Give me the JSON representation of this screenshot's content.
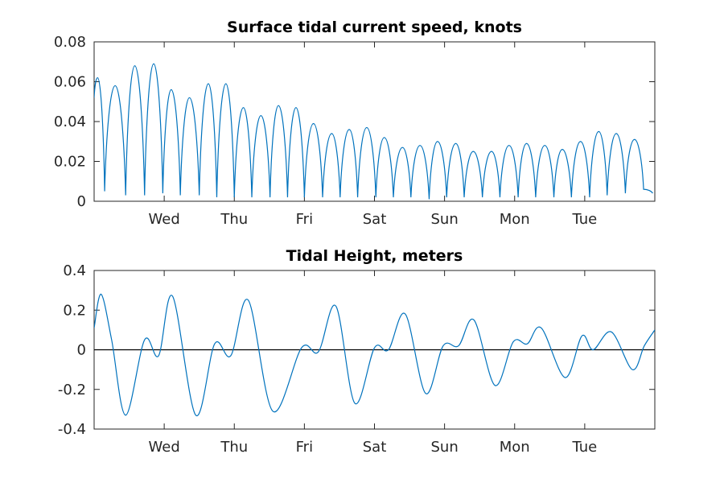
{
  "chart_data": [
    {
      "type": "line",
      "title": "Surface tidal current speed, knots",
      "xlabel": "",
      "ylabel": "",
      "x_unit": "days",
      "xlim": [
        0,
        8
      ],
      "ylim": [
        0,
        0.08
      ],
      "yticks": [
        0,
        0.02,
        0.04,
        0.06,
        0.08
      ],
      "ytick_labels": [
        "0",
        "0.02",
        "0.04",
        "0.06",
        "0.08"
      ],
      "xticks": [
        1,
        2,
        3,
        4,
        5,
        6,
        7
      ],
      "xtick_labels": [
        "Wed",
        "Thu",
        "Fri",
        "Sat",
        "Sun",
        "Mon",
        "Tue"
      ],
      "grid": false,
      "color": "#0072BD",
      "series": [
        {
          "x": [
            0,
            0.05,
            0.15,
            0.3,
            0.45,
            0.58,
            0.72,
            0.85,
            0.98,
            1.1,
            1.23,
            1.36,
            1.5,
            1.63,
            1.75,
            1.88,
            2.0,
            2.13,
            2.25,
            2.38,
            2.51,
            2.63,
            2.76,
            2.88,
            3.0,
            3.13,
            3.26,
            3.39,
            3.51,
            3.64,
            3.76,
            3.89,
            4.02,
            4.14,
            4.27,
            4.4,
            4.52,
            4.65,
            4.78,
            4.9,
            5.03,
            5.16,
            5.28,
            5.41,
            5.54,
            5.67,
            5.79,
            5.92,
            6.05,
            6.17,
            6.3,
            6.43,
            6.56,
            6.68,
            6.81,
            6.94,
            7.07,
            7.2,
            7.32,
            7.45,
            7.58,
            7.71,
            7.84,
            7.97
          ],
          "y": [
            0.052,
            0.062,
            0.005,
            0.058,
            0.003,
            0.068,
            0.003,
            0.069,
            0.004,
            0.056,
            0.003,
            0.052,
            0.003,
            0.059,
            0.002,
            0.059,
            0.002,
            0.047,
            0.002,
            0.043,
            0.002,
            0.048,
            0.002,
            0.047,
            0.002,
            0.039,
            0.002,
            0.034,
            0.002,
            0.036,
            0.002,
            0.037,
            0.002,
            0.032,
            0.002,
            0.027,
            0.002,
            0.028,
            0.001,
            0.03,
            0.002,
            0.029,
            0.002,
            0.025,
            0.002,
            0.025,
            0.002,
            0.028,
            0.002,
            0.029,
            0.002,
            0.028,
            0.002,
            0.026,
            0.002,
            0.03,
            0.002,
            0.035,
            0.003,
            0.034,
            0.004,
            0.031,
            0.006,
            0.004
          ]
        }
      ]
    },
    {
      "type": "line",
      "title": "Tidal Height, meters",
      "xlabel": "",
      "ylabel": "",
      "x_unit": "days",
      "xlim": [
        0,
        8
      ],
      "ylim": [
        -0.4,
        0.4
      ],
      "yticks": [
        -0.4,
        -0.2,
        0,
        0.2,
        0.4
      ],
      "ytick_labels": [
        "-0.4",
        "-0.2",
        "0",
        "0.2",
        "0.4"
      ],
      "xticks": [
        1,
        2,
        3,
        4,
        5,
        6,
        7
      ],
      "xtick_labels": [
        "Wed",
        "Thu",
        "Fri",
        "Sat",
        "Sun",
        "Mon",
        "Tue"
      ],
      "grid": false,
      "zero_line": true,
      "color": "#0072BD",
      "series": [
        {
          "x": [
            0,
            0.1,
            0.25,
            0.45,
            0.72,
            0.92,
            1.12,
            1.45,
            1.72,
            1.95,
            2.2,
            2.55,
            2.96,
            3.2,
            3.45,
            3.72,
            4.0,
            4.2,
            4.44,
            4.73,
            4.98,
            5.2,
            5.42,
            5.72,
            5.98,
            6.18,
            6.38,
            6.72,
            6.96,
            7.12,
            7.38,
            7.68,
            7.85,
            8.0
          ],
          "y": [
            0.11,
            0.28,
            0.05,
            -0.33,
            0.05,
            -0.03,
            0.27,
            -0.33,
            0.03,
            -0.03,
            0.25,
            -0.31,
            0.01,
            -0.01,
            0.22,
            -0.27,
            0.01,
            0.0,
            0.18,
            -0.22,
            0.02,
            0.02,
            0.15,
            -0.18,
            0.04,
            0.03,
            0.11,
            -0.14,
            0.07,
            0.0,
            0.09,
            -0.1,
            0.02,
            0.1
          ]
        }
      ]
    }
  ]
}
